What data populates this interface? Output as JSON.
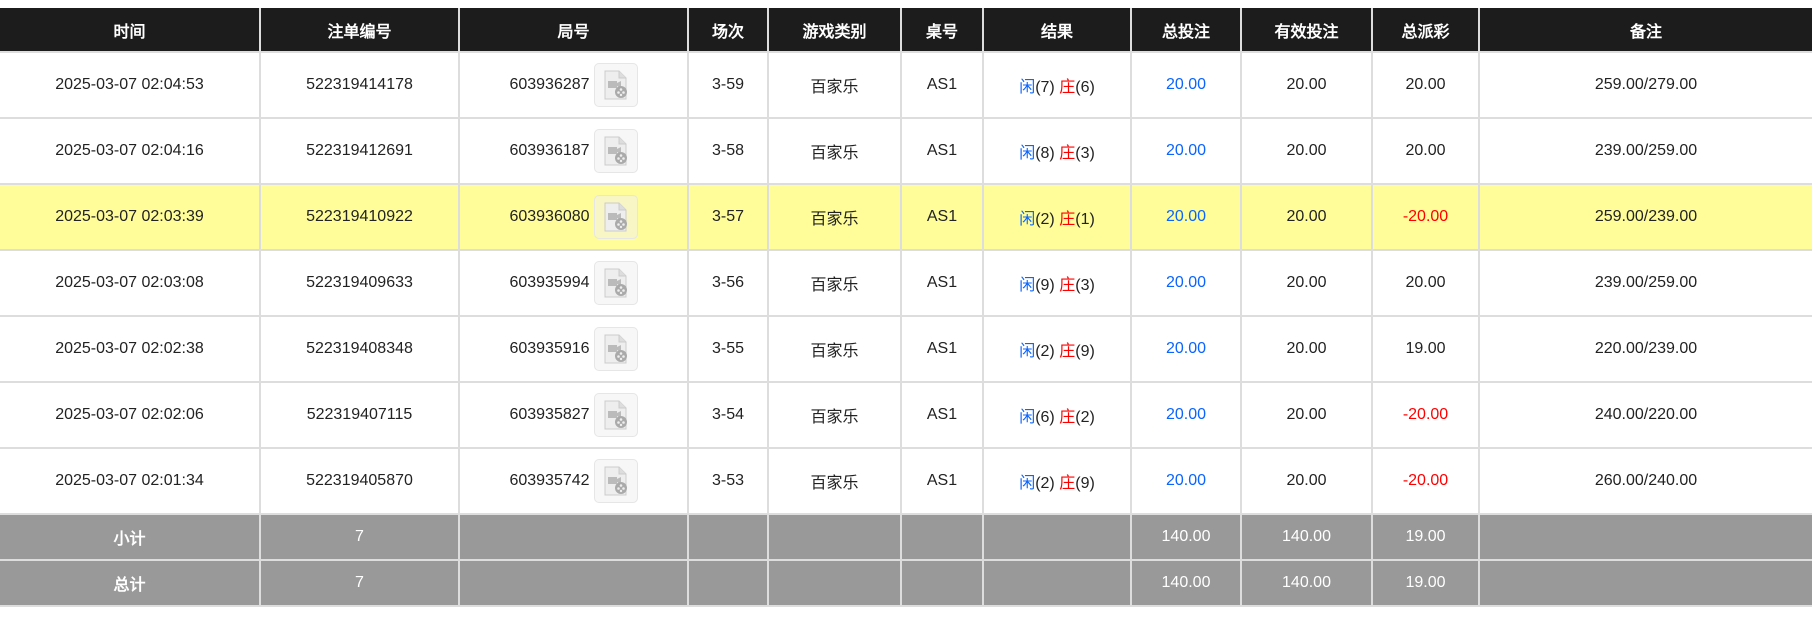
{
  "headers": [
    "时间",
    "注单编号",
    "局号",
    "场次",
    "游戏类别",
    "桌号",
    "结果",
    "总投注",
    "有效投注",
    "总派彩",
    "备注"
  ],
  "rows": [
    {
      "time": "2025-03-07 02:04:53",
      "bet_id": "522319414178",
      "round": "603936287",
      "shoe": "3-59",
      "game": "百家乐",
      "table": "AS1",
      "player_label": "闲",
      "player": "(7)",
      "banker_label": "庄",
      "banker": "(6)",
      "total_bet": "20.00",
      "valid_bet": "20.00",
      "payout": "20.00",
      "payout_negative": false,
      "note": "259.00/279.00",
      "highlight": false
    },
    {
      "time": "2025-03-07 02:04:16",
      "bet_id": "522319412691",
      "round": "603936187",
      "shoe": "3-58",
      "game": "百家乐",
      "table": "AS1",
      "player_label": "闲",
      "player": "(8)",
      "banker_label": "庄",
      "banker": "(3)",
      "total_bet": "20.00",
      "valid_bet": "20.00",
      "payout": "20.00",
      "payout_negative": false,
      "note": "239.00/259.00",
      "highlight": false
    },
    {
      "time": "2025-03-07 02:03:39",
      "bet_id": "522319410922",
      "round": "603936080",
      "shoe": "3-57",
      "game": "百家乐",
      "table": "AS1",
      "player_label": "闲",
      "player": "(2)",
      "banker_label": "庄",
      "banker": "(1)",
      "total_bet": "20.00",
      "valid_bet": "20.00",
      "payout": "-20.00",
      "payout_negative": true,
      "note": "259.00/239.00",
      "highlight": true
    },
    {
      "time": "2025-03-07 02:03:08",
      "bet_id": "522319409633",
      "round": "603935994",
      "shoe": "3-56",
      "game": "百家乐",
      "table": "AS1",
      "player_label": "闲",
      "player": "(9)",
      "banker_label": "庄",
      "banker": "(3)",
      "total_bet": "20.00",
      "valid_bet": "20.00",
      "payout": "20.00",
      "payout_negative": false,
      "note": "239.00/259.00",
      "highlight": false
    },
    {
      "time": "2025-03-07 02:02:38",
      "bet_id": "522319408348",
      "round": "603935916",
      "shoe": "3-55",
      "game": "百家乐",
      "table": "AS1",
      "player_label": "闲",
      "player": "(2)",
      "banker_label": "庄",
      "banker": "(9)",
      "total_bet": "20.00",
      "valid_bet": "20.00",
      "payout": "19.00",
      "payout_negative": false,
      "note": "220.00/239.00",
      "highlight": false
    },
    {
      "time": "2025-03-07 02:02:06",
      "bet_id": "522319407115",
      "round": "603935827",
      "shoe": "3-54",
      "game": "百家乐",
      "table": "AS1",
      "player_label": "闲",
      "player": "(6)",
      "banker_label": "庄",
      "banker": "(2)",
      "total_bet": "20.00",
      "valid_bet": "20.00",
      "payout": "-20.00",
      "payout_negative": true,
      "note": "240.00/220.00",
      "highlight": false
    },
    {
      "time": "2025-03-07 02:01:34",
      "bet_id": "522319405870",
      "round": "603935742",
      "shoe": "3-53",
      "game": "百家乐",
      "table": "AS1",
      "player_label": "闲",
      "player": "(2)",
      "banker_label": "庄",
      "banker": "(9)",
      "total_bet": "20.00",
      "valid_bet": "20.00",
      "payout": "-20.00",
      "payout_negative": true,
      "note": "260.00/240.00",
      "highlight": false
    }
  ],
  "footer": [
    {
      "label": "小计",
      "count": "7",
      "total_bet": "140.00",
      "valid_bet": "140.00",
      "payout": "19.00"
    },
    {
      "label": "总计",
      "count": "7",
      "total_bet": "140.00",
      "valid_bet": "140.00",
      "payout": "19.00"
    }
  ],
  "colors": {
    "header_bg": "#1c1c1c",
    "highlight": "#fffd99",
    "player": "#0a64ff",
    "banker": "#ff0000",
    "negative": "#ff0000",
    "footer_bg": "#999999"
  },
  "icons": {
    "replay": "video-file-icon"
  }
}
